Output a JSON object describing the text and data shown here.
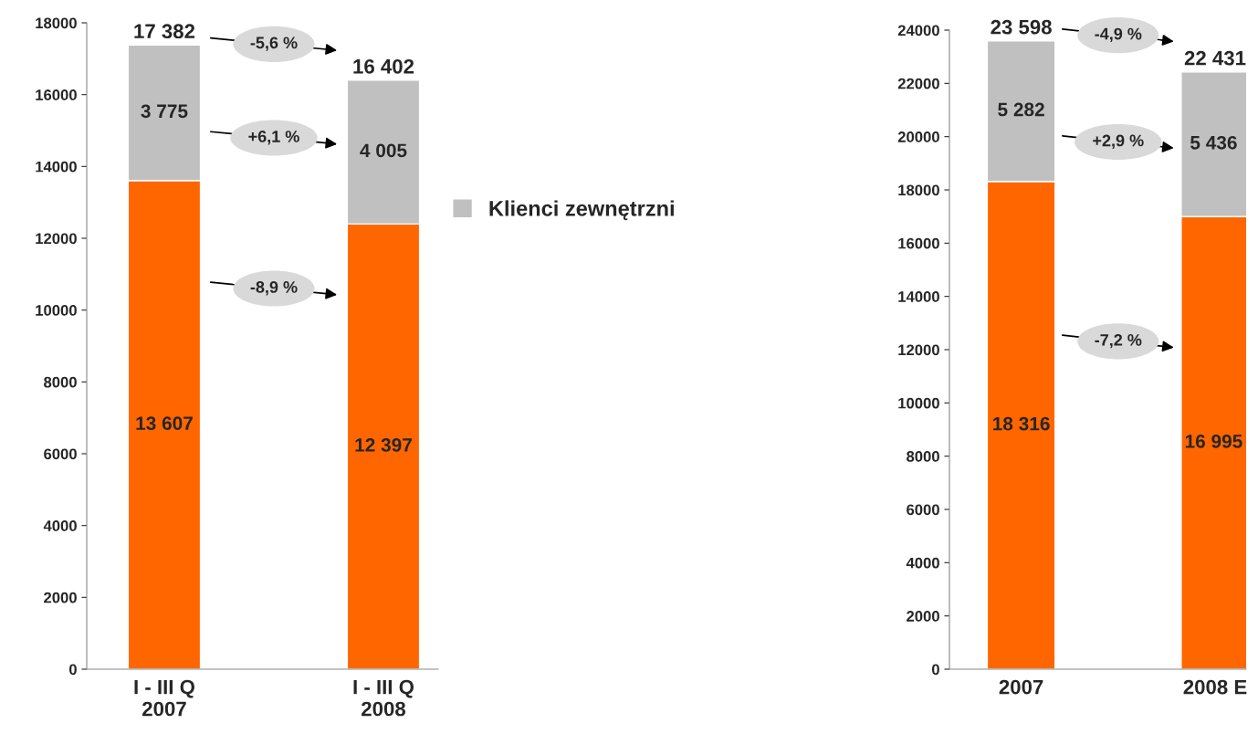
{
  "chart_data": [
    {
      "type": "bar",
      "stacked": true,
      "categories": [
        "I - III Q\n2007",
        "I - III Q\n2008"
      ],
      "series": [
        {
          "color": "#ff6600",
          "values": [
            13607,
            12397
          ],
          "value_labels": [
            "13 607",
            "12 397"
          ]
        },
        {
          "name": "Klienci zewnętrzni",
          "color": "#c0c0c0",
          "values": [
            3775,
            4005
          ],
          "value_labels": [
            "3 775",
            "4 005"
          ]
        }
      ],
      "totals": [
        "17 382",
        "16 402"
      ],
      "ylim": [
        0,
        18000
      ],
      "yticks": [
        0,
        2000,
        4000,
        6000,
        8000,
        10000,
        12000,
        14000,
        16000,
        18000
      ],
      "grid": false,
      "legend": "right",
      "annotations": [
        "-5,6 %",
        "+6,1 %",
        "-8,9 %"
      ]
    },
    {
      "type": "bar",
      "stacked": true,
      "categories": [
        "2007",
        "2008 E"
      ],
      "series": [
        {
          "color": "#ff6600",
          "values": [
            18316,
            16995
          ],
          "value_labels": [
            "18 316",
            "16 995"
          ]
        },
        {
          "color": "#c0c0c0",
          "values": [
            5282,
            5436
          ],
          "value_labels": [
            "5 282",
            "5 436"
          ]
        }
      ],
      "totals": [
        "23 598",
        "22 431"
      ],
      "ylim": [
        0,
        24000
      ],
      "yticks": [
        0,
        2000,
        4000,
        6000,
        8000,
        10000,
        12000,
        14000,
        16000,
        18000,
        20000,
        22000,
        24000
      ],
      "grid": false,
      "annotations": [
        "-4,9 %",
        "+2,9 %",
        "-7,2 %"
      ]
    }
  ]
}
